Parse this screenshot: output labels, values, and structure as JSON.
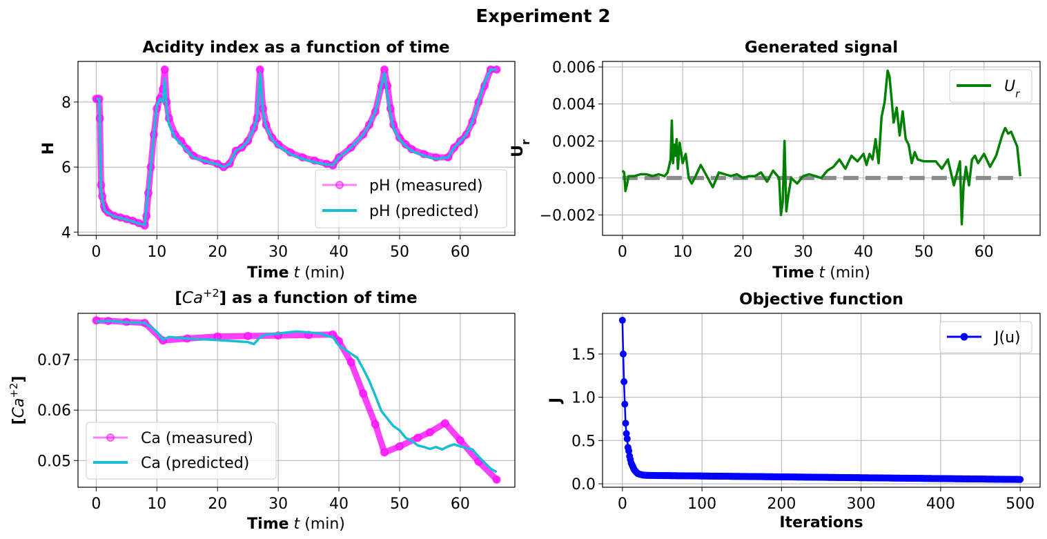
{
  "figure": {
    "title": "Experiment 2"
  },
  "chart_data": [
    {
      "id": "ph",
      "type": "line",
      "title": "Acidity index as a function of time",
      "xlabel_bold": "Time",
      "xlabel_var": "t",
      "xlabel_unit": "(min)",
      "ylabel": "H",
      "xlim": [
        -3,
        69
      ],
      "ylim": [
        3.9,
        9.25
      ],
      "xticks": [
        0,
        10,
        20,
        30,
        40,
        50,
        60
      ],
      "yticks": [
        4,
        6,
        8
      ],
      "grid": true,
      "legend_position": "lower-right",
      "series": [
        {
          "name": "pH (measured)",
          "color": "#ff00ff",
          "marker": "circle",
          "x": [
            0,
            0.5,
            0.6,
            0.8,
            1,
            1.3,
            1.5,
            2,
            3,
            4,
            5,
            6,
            7,
            8,
            8.3,
            8.6,
            9,
            9.5,
            10,
            10.5,
            11,
            11.3,
            11.6,
            12,
            13,
            14,
            15,
            16,
            18,
            20,
            21,
            22,
            23,
            24,
            25,
            26,
            26.5,
            27,
            27.5,
            28,
            29,
            30,
            32,
            34,
            36,
            38,
            39,
            40,
            42,
            44,
            45,
            46,
            47,
            47.5,
            48,
            48.5,
            49,
            50,
            51,
            52,
            54,
            56,
            58,
            59,
            60,
            61,
            62,
            63,
            64,
            65,
            66
          ],
          "y": [
            8.1,
            8.1,
            7.5,
            5.45,
            5.1,
            4.8,
            4.7,
            4.6,
            4.5,
            4.45,
            4.4,
            4.35,
            4.28,
            4.2,
            4.5,
            5.2,
            6.0,
            7.0,
            7.8,
            8.1,
            8.4,
            9.0,
            8.0,
            7.5,
            7.0,
            6.8,
            6.55,
            6.35,
            6.2,
            6.1,
            6.0,
            6.1,
            6.5,
            6.6,
            6.8,
            7.2,
            7.5,
            9.0,
            7.8,
            7.3,
            6.9,
            6.7,
            6.45,
            6.3,
            6.2,
            6.1,
            6.05,
            6.3,
            6.6,
            7.0,
            7.3,
            7.7,
            8.5,
            9.0,
            8.5,
            7.8,
            7.3,
            6.9,
            6.7,
            6.55,
            6.4,
            6.3,
            6.3,
            6.6,
            6.8,
            7.0,
            7.4,
            8.0,
            8.5,
            9.0,
            9.0
          ]
        },
        {
          "name": "pH (predicted)",
          "color": "#17becf",
          "x": [
            0,
            0.5,
            0.6,
            0.8,
            1,
            1.3,
            1.5,
            2,
            3,
            4,
            5,
            6,
            7,
            8,
            8.3,
            8.6,
            9,
            9.5,
            10,
            10.5,
            11,
            11.3,
            11.6,
            12,
            13,
            14,
            15,
            16,
            18,
            20,
            21,
            22,
            23,
            24,
            25,
            26,
            26.5,
            27,
            27.5,
            28,
            29,
            30,
            32,
            34,
            36,
            38,
            39,
            40,
            42,
            44,
            45,
            46,
            47,
            47.5,
            48,
            48.5,
            49,
            50,
            51,
            52,
            54,
            56,
            58,
            59,
            60,
            61,
            62,
            63,
            64,
            65,
            66
          ],
          "y": [
            8.1,
            8.1,
            7.3,
            5.3,
            5.0,
            4.75,
            4.65,
            4.58,
            4.48,
            4.43,
            4.38,
            4.33,
            4.26,
            4.22,
            4.8,
            5.3,
            6.0,
            7.0,
            7.9,
            8.1,
            8.0,
            8.7,
            7.8,
            7.3,
            6.9,
            6.7,
            6.5,
            6.3,
            6.18,
            6.08,
            6.0,
            6.1,
            6.5,
            6.6,
            6.8,
            7.2,
            7.5,
            8.9,
            7.7,
            7.25,
            6.85,
            6.65,
            6.4,
            6.25,
            6.15,
            6.08,
            6.05,
            6.3,
            6.6,
            7.0,
            7.3,
            7.7,
            8.5,
            8.9,
            8.2,
            7.6,
            7.2,
            6.85,
            6.65,
            6.5,
            6.35,
            6.25,
            6.3,
            6.6,
            6.8,
            7.0,
            7.4,
            8.0,
            8.6,
            9.0,
            9.0
          ]
        }
      ]
    },
    {
      "id": "signal",
      "type": "line",
      "title": "Generated signal",
      "xlabel_bold": "Time",
      "xlabel_var": "t",
      "xlabel_unit": "(min)",
      "ylabel": "U",
      "ylabel_sub": "r",
      "xlim": [
        -3.3,
        69.3
      ],
      "ylim": [
        -0.0031,
        0.0063
      ],
      "xticks": [
        0,
        10,
        20,
        30,
        40,
        50,
        60
      ],
      "yticks": [
        -0.002,
        0.0,
        0.002,
        0.004,
        0.006
      ],
      "ytick_labels": [
        "−0.002",
        "0.000",
        "0.002",
        "0.004",
        "0.006"
      ],
      "grid": true,
      "legend_position": "upper-right",
      "zero_line": {
        "y": 0,
        "color": "#808080",
        "style": "dashed"
      },
      "series": [
        {
          "name": "U",
          "name_sub": "r",
          "color": "#008000",
          "x": [
            0,
            0.3,
            0.5,
            0.8,
            1,
            2,
            3,
            4,
            5,
            6,
            7,
            7.5,
            8,
            8.2,
            8.4,
            8.6,
            8.8,
            9,
            9.2,
            9.5,
            10,
            10.5,
            11,
            11.5,
            12,
            13,
            14,
            15,
            16,
            17,
            18,
            19,
            20,
            21,
            22,
            23,
            24,
            25,
            26,
            26.3,
            26.6,
            26.9,
            27.2,
            27.5,
            28,
            29,
            30,
            31,
            32,
            33,
            34,
            35,
            36,
            37,
            38,
            39,
            40,
            40.5,
            41,
            41.5,
            42,
            42.5,
            43,
            43.5,
            44,
            44.3,
            44.6,
            45,
            45.5,
            46,
            46.5,
            47,
            47.5,
            48,
            48.5,
            49,
            50,
            51,
            52,
            53,
            54,
            55,
            56,
            56.3,
            56.6,
            57,
            57.5,
            58,
            58.5,
            59,
            60,
            61,
            62,
            63,
            63.5,
            64,
            64.5,
            65,
            65.5,
            66
          ],
          "y": [
            0.0004,
            0.0003,
            -0.0007,
            -0.0003,
            0.0001,
            0.0001,
            0.0002,
            0.0002,
            0.0001,
            0.0002,
            0.0001,
            0.0003,
            0.001,
            0.0031,
            0.0008,
            0.0018,
            0.0012,
            0.0021,
            0.0005,
            0.0019,
            0.0008,
            0.0013,
            0.0,
            -0.0003,
            0.0,
            0.0007,
            0.0001,
            -0.0005,
            0.0003,
            0.0002,
            0.0001,
            0.0002,
            0.0,
            0.0001,
            0.0001,
            0.0003,
            -0.0002,
            0.0004,
            0.0,
            -0.002,
            -0.0013,
            0.002,
            -0.0018,
            -0.001,
            0.0,
            -0.0003,
            0.0001,
            0.0002,
            0.0001,
            0.0,
            0.0004,
            0.0006,
            0.001,
            0.0005,
            0.0012,
            0.0009,
            0.0013,
            0.0007,
            0.0013,
            0.001,
            0.0021,
            0.0008,
            0.0033,
            0.0041,
            0.0058,
            0.0055,
            0.0045,
            0.003,
            0.0038,
            0.0023,
            0.0036,
            0.0021,
            0.0018,
            0.0008,
            0.0014,
            0.001,
            0.0009,
            0.0009,
            0.0009,
            0.0005,
            0.001,
            -0.0004,
            0.0009,
            -0.0025,
            -0.0004,
            0.0006,
            -0.0004,
            0.001,
            0.0012,
            0.0008,
            0.0013,
            0.0006,
            0.0012,
            0.0023,
            0.0027,
            0.0024,
            0.0025,
            0.0021,
            0.0017,
            0.0001
          ]
        }
      ]
    },
    {
      "id": "ca",
      "type": "line",
      "title_prefix": "[",
      "title_var": "Ca",
      "title_sup": "+2",
      "title_suffix": "] as a function of time",
      "xlabel_bold": "Time",
      "xlabel_var": "t",
      "xlabel_unit": "(min)",
      "ylabel_prefix": "[",
      "ylabel_var": "Ca",
      "ylabel_sup": "+2",
      "ylabel_suffix": "]",
      "xlim": [
        -3,
        69
      ],
      "ylim": [
        0.0447,
        0.0792
      ],
      "xticks": [
        0,
        10,
        20,
        30,
        40,
        50,
        60
      ],
      "yticks": [
        0.05,
        0.06,
        0.07
      ],
      "ytick_labels": [
        "0.05",
        "0.06",
        "0.07"
      ],
      "grid": true,
      "legend_position": "lower-left",
      "series": [
        {
          "name": "Ca (measured)",
          "color": "#ff00ff",
          "marker": "circle",
          "x": [
            0,
            2,
            5,
            8,
            11,
            15,
            20,
            25,
            30,
            35,
            39,
            40,
            42,
            44,
            46,
            47.5,
            50,
            53,
            55,
            57.5,
            60,
            63,
            66
          ],
          "y": [
            0.0778,
            0.0777,
            0.0775,
            0.0773,
            0.0738,
            0.0742,
            0.0746,
            0.0747,
            0.0748,
            0.0749,
            0.075,
            0.0737,
            0.0695,
            0.0633,
            0.0572,
            0.0516,
            0.0528,
            0.0545,
            0.0556,
            0.0574,
            0.054,
            0.0498,
            0.0462
          ]
        },
        {
          "name": "Ca (predicted)",
          "color": "#17becf",
          "x": [
            0,
            2,
            5,
            8,
            9,
            10,
            11,
            12,
            15,
            20,
            25,
            26,
            27,
            28,
            30,
            33,
            35,
            37,
            38,
            39,
            40,
            41,
            42,
            43,
            44,
            45,
            46,
            47,
            48,
            49,
            50,
            51,
            52,
            53,
            54,
            55,
            56,
            57,
            58,
            59,
            60,
            61,
            62,
            63,
            64,
            65,
            66
          ],
          "y": [
            0.0776,
            0.0777,
            0.0774,
            0.0773,
            0.0765,
            0.0755,
            0.074,
            0.0745,
            0.0742,
            0.0739,
            0.0735,
            0.0731,
            0.0745,
            0.075,
            0.0752,
            0.0756,
            0.0754,
            0.0752,
            0.0747,
            0.0745,
            0.0728,
            0.072,
            0.0712,
            0.0704,
            0.0682,
            0.0658,
            0.0629,
            0.0598,
            0.0583,
            0.0568,
            0.056,
            0.0545,
            0.0539,
            0.053,
            0.0527,
            0.0523,
            0.0527,
            0.0522,
            0.0528,
            0.0532,
            0.0528,
            0.0525,
            0.0522,
            0.0508,
            0.0496,
            0.0484,
            0.0477
          ]
        }
      ]
    },
    {
      "id": "objective",
      "type": "line",
      "title": "Objective function",
      "xlabel": "Iterations",
      "ylabel": "J",
      "xlim": [
        -25,
        525
      ],
      "ylim": [
        -0.04,
        1.97
      ],
      "xticks": [
        0,
        100,
        200,
        300,
        400,
        500
      ],
      "yticks": [
        0.0,
        0.5,
        1.0,
        1.5
      ],
      "ytick_labels": [
        "0.0",
        "0.5",
        "1.0",
        "1.5"
      ],
      "grid": true,
      "legend_position": "upper-right",
      "series": [
        {
          "name": "J(u)",
          "color": "#0000ff",
          "marker": "circle",
          "x": [
            0,
            1,
            2,
            3,
            4,
            5,
            6,
            7,
            8,
            9,
            10,
            11,
            12,
            13,
            14,
            15,
            16,
            17,
            18,
            19,
            20,
            22,
            24,
            26,
            28,
            30,
            35,
            40,
            45,
            50,
            60,
            70,
            80,
            90,
            100,
            120,
            140,
            160,
            180,
            200,
            220,
            240,
            260,
            280,
            300,
            320,
            340,
            360,
            380,
            400,
            420,
            440,
            460,
            480,
            500
          ],
          "y": [
            1.89,
            1.5,
            1.18,
            0.92,
            0.7,
            0.58,
            0.52,
            0.42,
            0.38,
            0.32,
            0.28,
            0.24,
            0.22,
            0.2,
            0.18,
            0.16,
            0.15,
            0.14,
            0.13,
            0.12,
            0.115,
            0.11,
            0.105,
            0.1,
            0.1,
            0.098,
            0.097,
            0.096,
            0.095,
            0.095,
            0.094,
            0.093,
            0.092,
            0.091,
            0.09,
            0.088,
            0.086,
            0.084,
            0.082,
            0.08,
            0.078,
            0.076,
            0.074,
            0.072,
            0.07,
            0.068,
            0.066,
            0.064,
            0.062,
            0.06,
            0.058,
            0.056,
            0.054,
            0.052,
            0.05
          ]
        }
      ]
    }
  ]
}
